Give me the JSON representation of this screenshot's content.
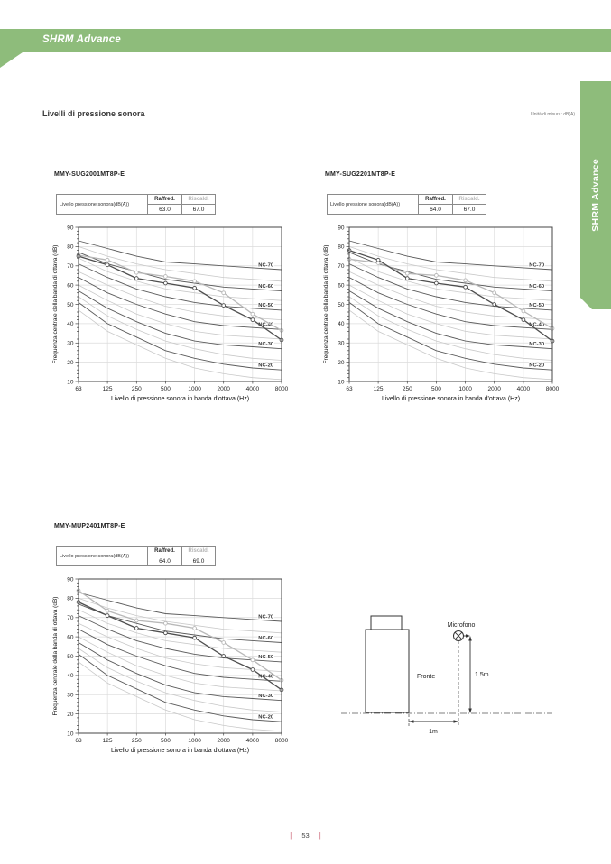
{
  "header": {
    "title": "SHRM Advance",
    "side_tab": "SHRM Advance"
  },
  "section": {
    "title": "Livelli di pressione sonora",
    "unit_note": "Unità di misura: dB(A)"
  },
  "table_labels": {
    "row_label": "Livello pressione sonora(dB(A))",
    "raffred": "Raffred.",
    "riscald": "Riscald."
  },
  "chart_data": {
    "shared": {
      "type": "line",
      "x_categories": [
        "63",
        "125",
        "250",
        "500",
        "1000",
        "2000",
        "4000",
        "8000"
      ],
      "xlabel": "Livello di pressione sonora in banda d'ottava (Hz)",
      "ylabel": "Frequenza centrale della banda di ottava (dB)",
      "ylim": [
        10,
        90
      ],
      "y_ticks": [
        10,
        20,
        30,
        40,
        50,
        60,
        70,
        80,
        90
      ],
      "grid": true,
      "nc_curves": {
        "NC-70": [
          83,
          79,
          75,
          72,
          71,
          70,
          69,
          68
        ],
        "NC-60": [
          77,
          71,
          67,
          63,
          61,
          59,
          58,
          57
        ],
        "NC-50": [
          71,
          64,
          58,
          54,
          51,
          49,
          48,
          47
        ],
        "NC-40": [
          64,
          56,
          50,
          45,
          41,
          39,
          38,
          37
        ],
        "NC-30": [
          57,
          48,
          41,
          35,
          31,
          29,
          28,
          27
        ],
        "NC-20": [
          51,
          40,
          33,
          26,
          22,
          19,
          17,
          16
        ]
      },
      "nc_light_curves": {
        "NC-65": [
          80,
          75,
          71,
          68,
          66,
          64,
          63,
          62
        ],
        "NC-55": [
          74,
          67,
          62,
          58,
          56,
          54,
          53,
          52
        ],
        "NC-45": [
          67,
          60,
          54,
          49,
          46,
          44,
          43,
          42
        ],
        "NC-35": [
          60,
          52,
          45,
          40,
          36,
          34,
          33,
          32
        ],
        "NC-25": [
          54,
          44,
          37,
          31,
          27,
          24,
          22,
          21
        ],
        "NC-15": [
          47,
          36,
          29,
          22,
          17,
          14,
          12,
          11
        ]
      }
    },
    "charts": [
      {
        "model": "MMY-SUG2001MT8P-E",
        "table": {
          "raffred": "63.0",
          "riscald": "67.0"
        },
        "series": [
          {
            "name": "Raffred.",
            "values": [
              75,
              70.5,
              63.5,
              61,
              58.5,
              49.5,
              42,
              31.5
            ]
          },
          {
            "name": "Riscald.",
            "values": [
              75.5,
              73,
              66.5,
              64.5,
              62,
              56,
              45,
              36.5
            ]
          }
        ]
      },
      {
        "model": "MMY-SUG2201MT8P-E",
        "table": {
          "raffred": "64.0",
          "riscald": "67.0"
        },
        "series": [
          {
            "name": "Raffred.",
            "values": [
              78,
              73,
              63.5,
              61,
              59,
              50,
              42,
              31
            ]
          },
          {
            "name": "Riscald.",
            "values": [
              73.5,
              71.5,
              66,
              65,
              62.5,
              56,
              46.5,
              37.5
            ]
          }
        ]
      },
      {
        "model": "MMY-MUP2401MT8P-E",
        "table": {
          "raffred": "64.0",
          "riscald": "69.0"
        },
        "series": [
          {
            "name": "Raffred.",
            "values": [
              78,
              71,
              64.5,
              62,
              59.5,
              50,
              43,
              32.5
            ]
          },
          {
            "name": "Riscald.",
            "values": [
              84,
              73.5,
              68.5,
              67,
              64.5,
              57,
              48,
              37.5
            ]
          }
        ]
      }
    ]
  },
  "diagram": {
    "microfono": "Microfono",
    "fronte": "Fronte",
    "height_label": "1.5m",
    "distance_label": "1m"
  },
  "footer": {
    "page_number": "53"
  },
  "colors": {
    "accent_green": "#8ebc7b",
    "rule_green": "#d6e3c9",
    "footer_bar": "#cc6677",
    "nc_dark": "#5a5a5a",
    "nc_light": "#c9c9c9",
    "series_raffred": "#4e4e4e",
    "series_riscald": "#b8b8b8",
    "grid": "#dcdcdc"
  }
}
